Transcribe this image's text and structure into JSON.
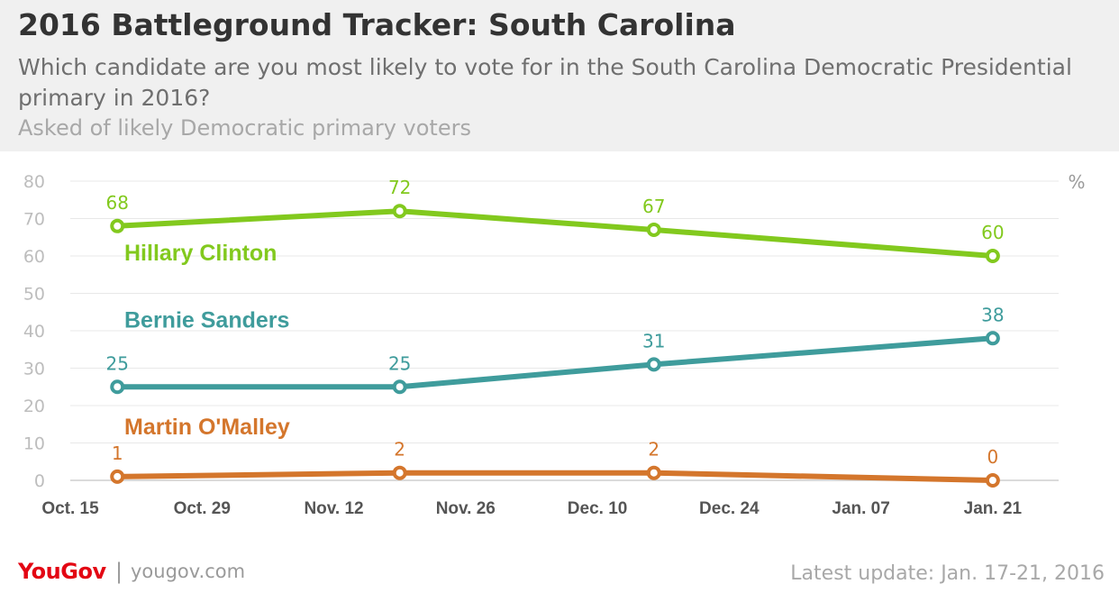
{
  "header": {
    "title": "2016 Battleground Tracker: South Carolina",
    "subtitle": "Which candidate are you most likely to vote for in the South Carolina Democratic Presidential primary in 2016?",
    "note": "Asked of likely Democratic primary voters"
  },
  "footer": {
    "brand": "YouGov",
    "separator": "|",
    "url": "yougov.com",
    "update": "Latest update: Jan. 17-21, 2016"
  },
  "chart_data": {
    "type": "line",
    "title": "2016 Battleground Tracker: South Carolina",
    "ylabel": "",
    "xlabel": "",
    "unit_label": "%",
    "ylim": [
      0,
      80
    ],
    "yticks": [
      0,
      10,
      20,
      30,
      40,
      50,
      60,
      70,
      80
    ],
    "xticks": [
      "2015-10-15",
      "2015-10-29",
      "2015-11-12",
      "2015-11-26",
      "2015-12-10",
      "2015-12-24",
      "2016-01-07",
      "2016-01-21"
    ],
    "xtick_labels": [
      "Oct. 15",
      "Oct. 29",
      "Nov. 12",
      "Nov. 26",
      "Dec. 10",
      "Dec. 24",
      "Jan. 07",
      "Jan. 21"
    ],
    "xlim": [
      "2015-10-15",
      "2016-01-28"
    ],
    "x": [
      "2015-10-20",
      "2015-11-19",
      "2015-12-16",
      "2016-01-21"
    ],
    "grid": true,
    "legend": "inline",
    "series": [
      {
        "name": "Hillary Clinton",
        "values": [
          68,
          72,
          67,
          60
        ],
        "color": "#82c91e",
        "label_at": 61
      },
      {
        "name": "Bernie Sanders",
        "values": [
          25,
          25,
          31,
          38
        ],
        "color": "#3f9c9c",
        "label_at": 43
      },
      {
        "name": "Martin O'Malley",
        "values": [
          1,
          2,
          2,
          0
        ],
        "color": "#d4762c",
        "label_at": 14.5
      }
    ]
  }
}
